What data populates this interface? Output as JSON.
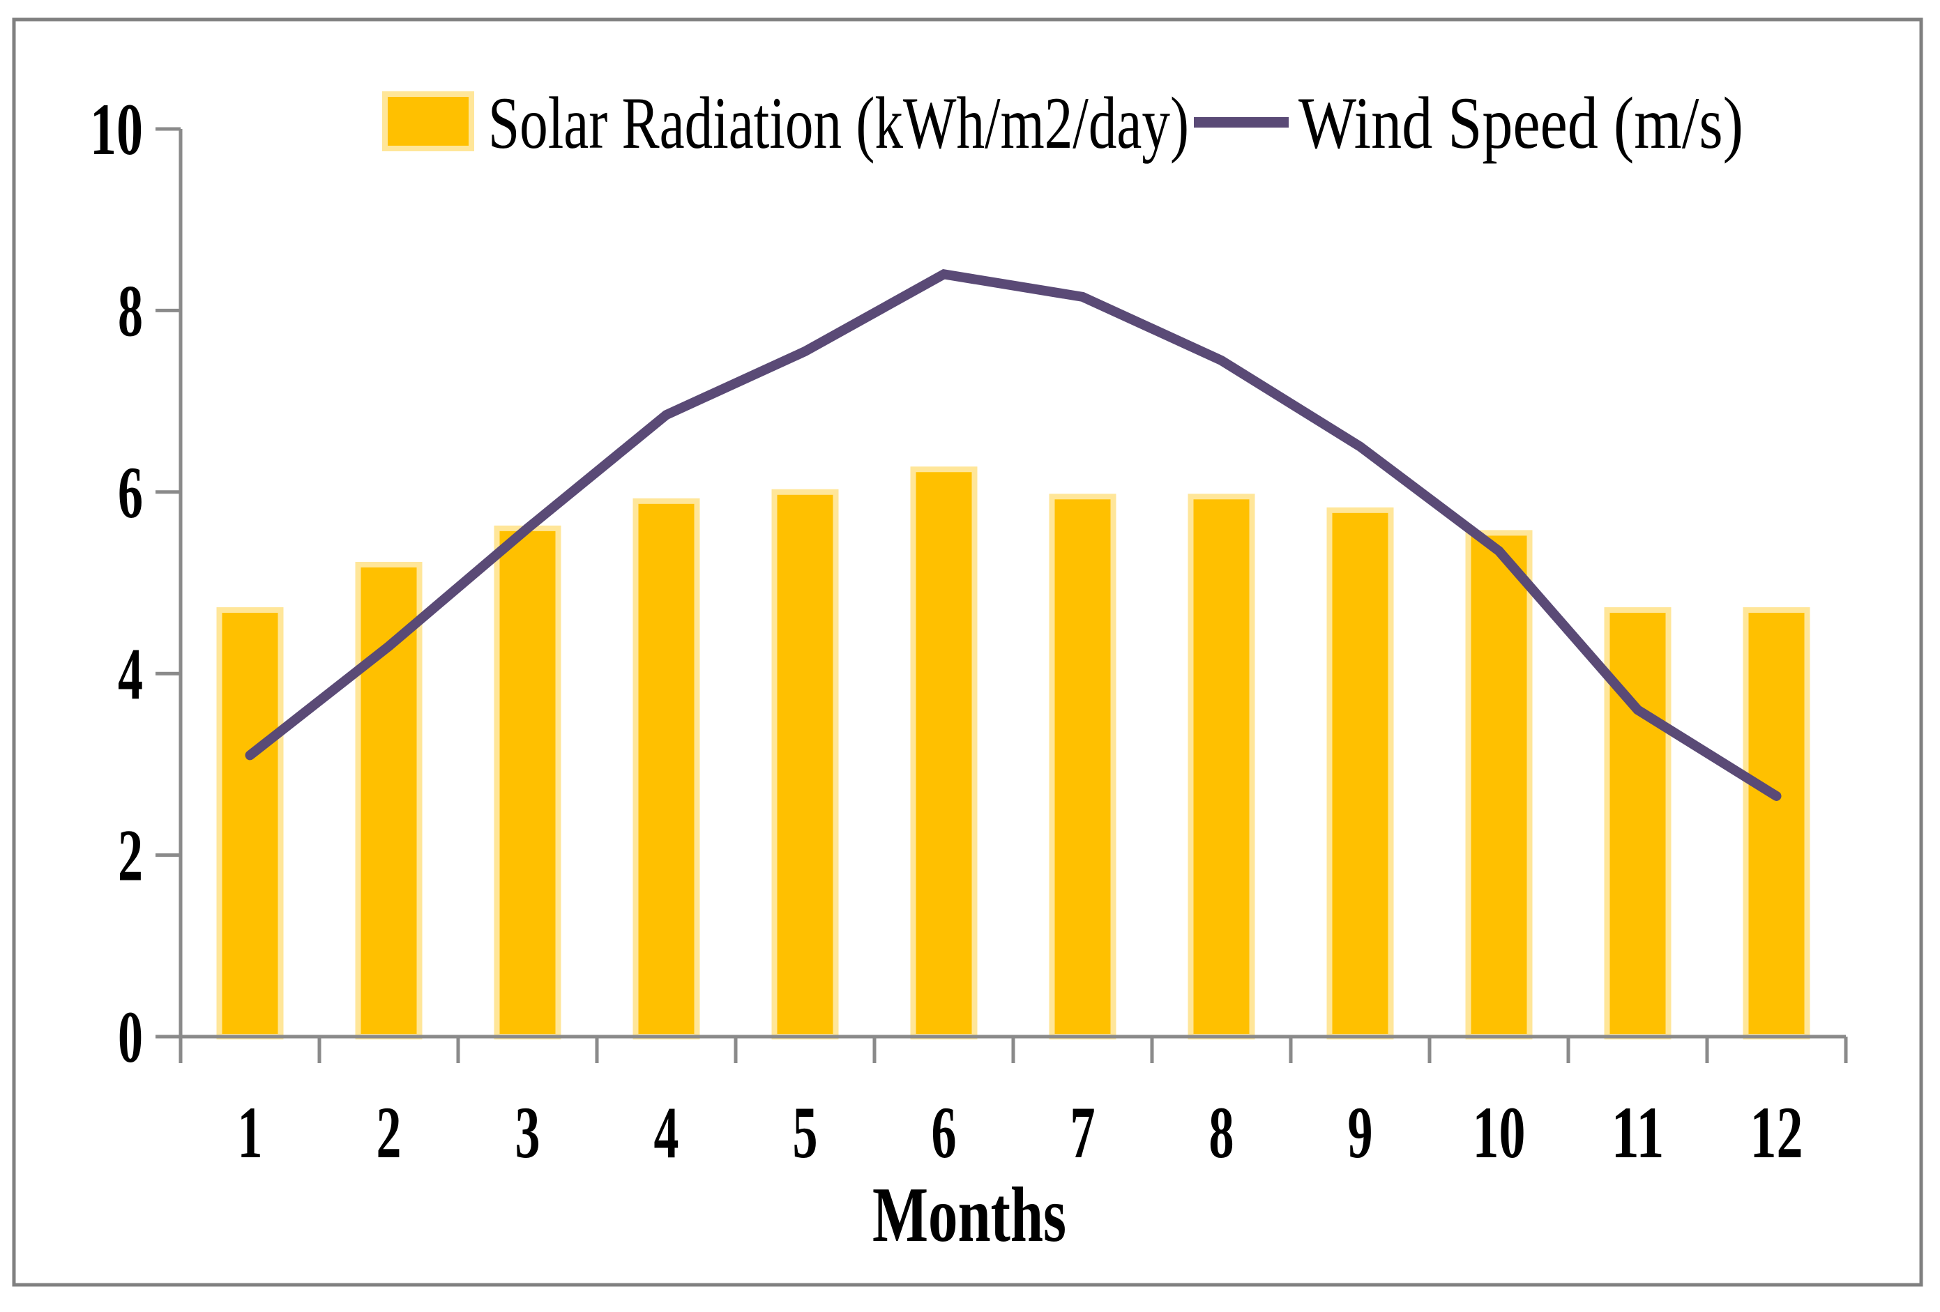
{
  "chart_data": {
    "type": "combo-bar-line",
    "title": "",
    "xlabel": "Months",
    "ylabel": "",
    "categories": [
      "1",
      "2",
      "3",
      "4",
      "5",
      "6",
      "7",
      "8",
      "9",
      "10",
      "11",
      "12"
    ],
    "series": [
      {
        "name": "Solar Radiation (kWh/m2/day)",
        "type": "bar",
        "color": "#FFC000",
        "values": [
          4.7,
          5.2,
          5.6,
          5.9,
          6.0,
          6.25,
          5.95,
          5.95,
          5.8,
          5.55,
          4.7,
          4.7
        ]
      },
      {
        "name": "Wind Speed (m/s)",
        "type": "line",
        "color": "#5A4A76",
        "values": [
          3.1,
          4.3,
          5.6,
          6.85,
          7.55,
          8.4,
          8.15,
          7.45,
          6.5,
          5.35,
          3.6,
          2.65
        ]
      }
    ],
    "ylim": [
      0,
      10
    ],
    "yticks": [
      "0",
      "2",
      "4",
      "6",
      "8",
      "10"
    ],
    "grid": false,
    "legend_position": "top-center"
  },
  "colors": {
    "bar_fill": "#FFC000",
    "bar_rim": "#FFE699",
    "line": "#5A4A76",
    "axis": "#8A8A8A",
    "frame": "#808080",
    "text": "#000000",
    "background": "#FFFFFF"
  }
}
